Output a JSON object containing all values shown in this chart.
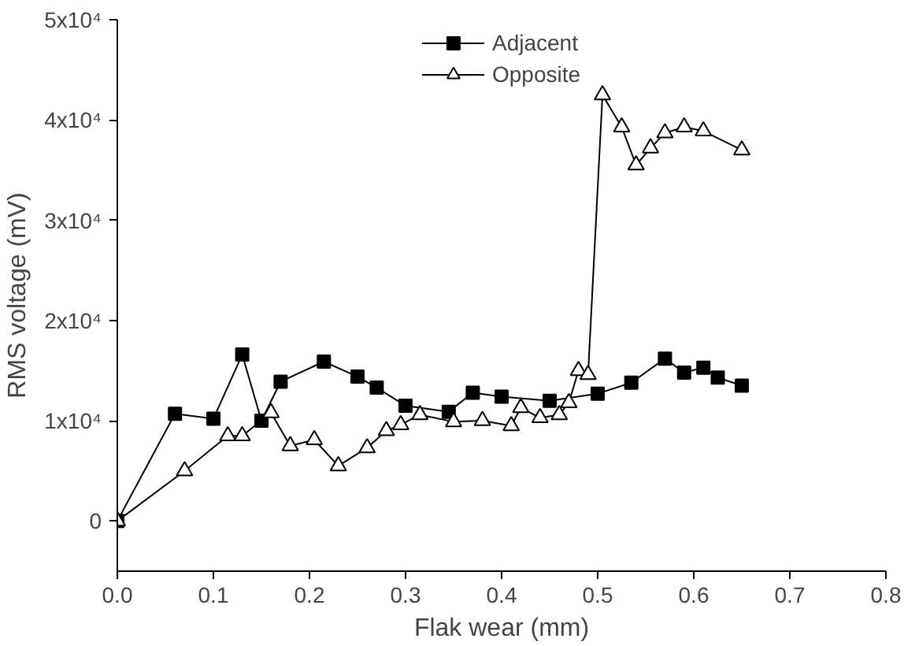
{
  "chart_data": {
    "type": "line",
    "xlabel": "Flak wear (mm)",
    "ylabel": "RMS voltage (mV)",
    "xlim": [
      0,
      0.8
    ],
    "ylim": [
      -5000,
      50000
    ],
    "xticks": [
      {
        "value": 0,
        "label": "0.0"
      },
      {
        "value": 0.1,
        "label": "0.1"
      },
      {
        "value": 0.2,
        "label": "0.2"
      },
      {
        "value": 0.3,
        "label": "0.3"
      },
      {
        "value": 0.4,
        "label": "0.4"
      },
      {
        "value": 0.5,
        "label": "0.5"
      },
      {
        "value": 0.6,
        "label": "0.6"
      },
      {
        "value": 0.7,
        "label": "0.7"
      },
      {
        "value": 0.8,
        "label": "0.8"
      }
    ],
    "yticks": [
      {
        "value": 0,
        "label": "0"
      },
      {
        "value": 10000,
        "label": "1x10⁴"
      },
      {
        "value": 20000,
        "label": "2x10⁴"
      },
      {
        "value": 30000,
        "label": "3x10⁴"
      },
      {
        "value": 40000,
        "label": "4x10⁴"
      },
      {
        "value": 50000,
        "label": "5x10⁴"
      }
    ],
    "grid": false,
    "legend": "top",
    "line_style": "solid",
    "series": [
      {
        "name": "Adjacent",
        "color": "#000000",
        "marker": "square",
        "x": [
          0,
          0.06,
          0.1,
          0.13,
          0.15,
          0.17,
          0.215,
          0.25,
          0.27,
          0.3,
          0.345,
          0.37,
          0.4,
          0.45,
          0.5,
          0.535,
          0.57,
          0.59,
          0.61,
          0.625,
          0.65
        ],
        "values": [
          0,
          10700,
          10200,
          16600,
          10000,
          13900,
          15900,
          14400,
          13300,
          11500,
          10900,
          12800,
          12400,
          12000,
          12700,
          13800,
          16200,
          14800,
          15300,
          14300,
          13500
        ]
      },
      {
        "name": "Opposite",
        "color": "#000000",
        "marker": "triangle",
        "x": [
          0,
          0.07,
          0.115,
          0.13,
          0.16,
          0.18,
          0.205,
          0.23,
          0.26,
          0.28,
          0.295,
          0.315,
          0.35,
          0.38,
          0.41,
          0.42,
          0.44,
          0.46,
          0.47,
          0.48,
          0.49,
          0.505,
          0.525,
          0.54,
          0.555,
          0.57,
          0.59,
          0.61,
          0.65
        ],
        "values": [
          0,
          5000,
          8500,
          8500,
          10800,
          7500,
          8100,
          5500,
          7300,
          9000,
          9600,
          10600,
          9900,
          10000,
          9500,
          11300,
          10300,
          10600,
          11800,
          15000,
          14600,
          42500,
          39300,
          35500,
          37200,
          38700,
          39300,
          38900,
          37000
        ]
      }
    ]
  }
}
